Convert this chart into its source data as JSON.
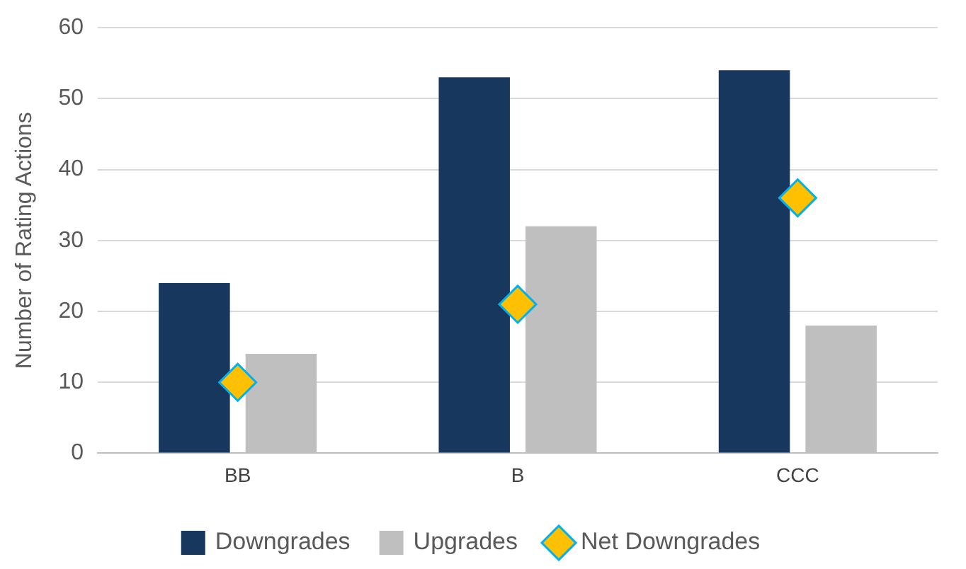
{
  "chart_data": {
    "type": "bar",
    "ylabel": "Number of Rating Actions",
    "categories": [
      "BB",
      "B",
      "CCC"
    ],
    "series": [
      {
        "name": "Downgrades",
        "color": "#17375e",
        "values": [
          24,
          53,
          54
        ]
      },
      {
        "name": "Upgrades",
        "color": "#bfbfbf",
        "values": [
          14,
          32,
          18
        ]
      },
      {
        "name": "Net Downgrades",
        "type": "scatter",
        "marker": "diamond",
        "color": "#ffc000",
        "x": [
          "BB",
          "B",
          "CCC"
        ],
        "values": [
          10,
          21,
          36
        ]
      }
    ],
    "ylim": [
      0,
      60
    ],
    "yticks": [
      0,
      10,
      20,
      30,
      40,
      50,
      60
    ],
    "grid": "y",
    "legend": "bottom"
  }
}
